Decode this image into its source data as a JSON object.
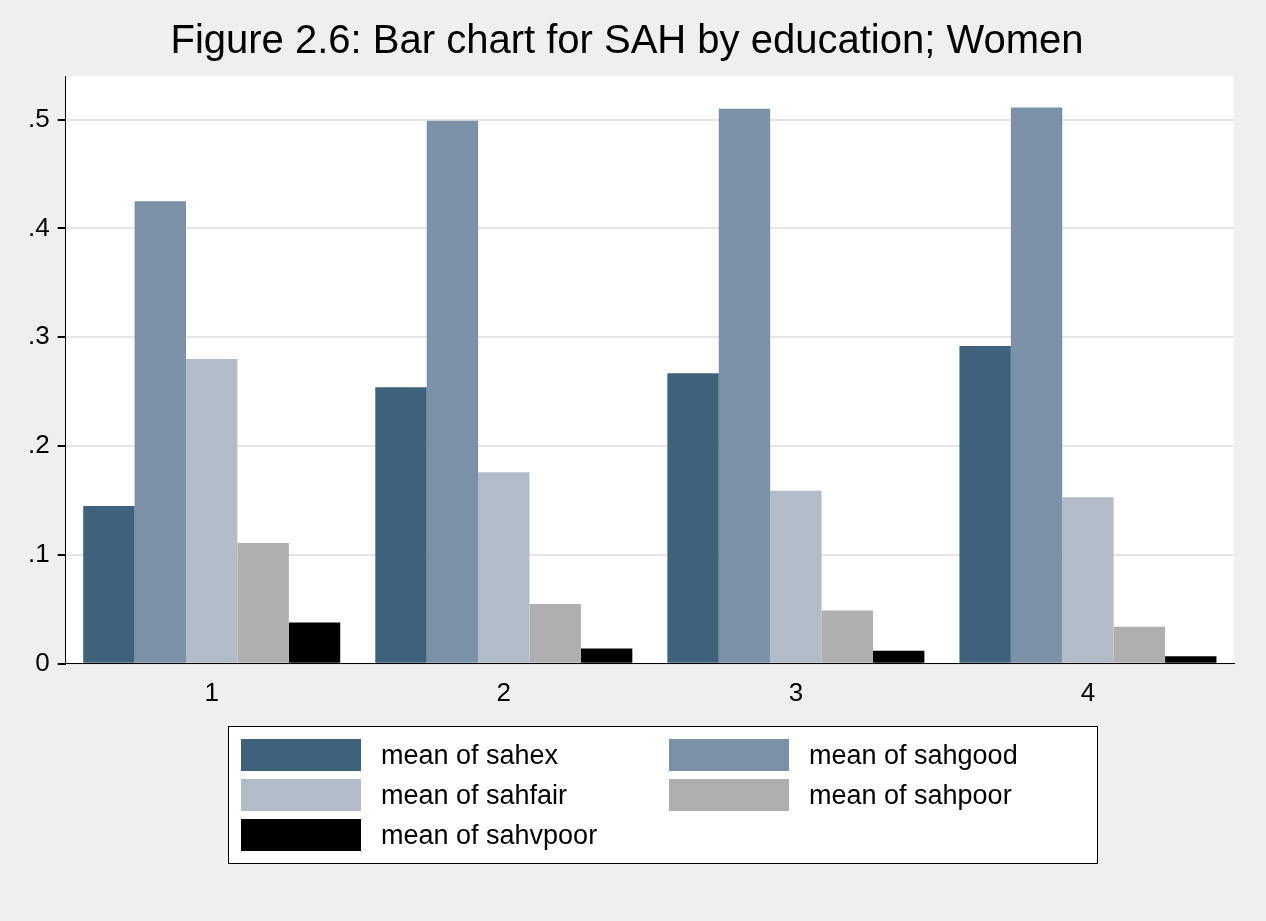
{
  "chart_data": {
    "type": "bar",
    "title": "Figure 2.6: Bar chart for SAH by education; Women",
    "categories": [
      "1",
      "2",
      "3",
      "4"
    ],
    "series": [
      {
        "name": "mean of sahex",
        "color": "#3e627c",
        "values": [
          0.145,
          0.254,
          0.267,
          0.292
        ]
      },
      {
        "name": "mean of sahgood",
        "color": "#7b91a8",
        "values": [
          0.425,
          0.499,
          0.51,
          0.511
        ]
      },
      {
        "name": "mean of sahfair",
        "color": "#b2bcc8",
        "values": [
          0.28,
          0.176,
          0.159,
          0.153
        ]
      },
      {
        "name": "mean of sahpoor",
        "color": "#afafaf",
        "values": [
          0.111,
          0.055,
          0.049,
          0.034
        ]
      },
      {
        "name": "mean of sahvpoor",
        "color": "#000000",
        "values": [
          0.038,
          0.014,
          0.012,
          0.007
        ]
      }
    ],
    "ylim": [
      0,
      0.54
    ],
    "yticks": [
      {
        "value": 0,
        "label": "0"
      },
      {
        "value": 0.1,
        "label": ".1"
      },
      {
        "value": 0.2,
        "label": ".2"
      },
      {
        "value": 0.3,
        "label": ".3"
      },
      {
        "value": 0.4,
        "label": ".4"
      },
      {
        "value": 0.5,
        "label": ".5"
      }
    ],
    "grid": "y",
    "legend": "bottom"
  }
}
